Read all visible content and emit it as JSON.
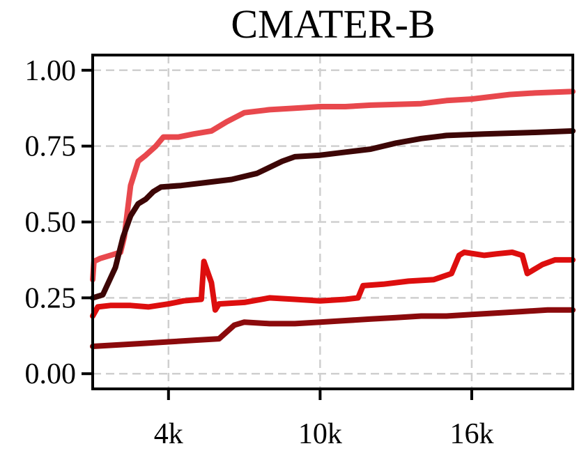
{
  "chart_data": {
    "type": "line",
    "title": "CMATER-B",
    "xlabel": "",
    "ylabel": "",
    "xlim": [
      1000,
      20000
    ],
    "ylim": [
      -0.05,
      1.05
    ],
    "grid": true,
    "x_ticks": [
      {
        "value": 4000,
        "label": "4k"
      },
      {
        "value": 10000,
        "label": "10k"
      },
      {
        "value": 16000,
        "label": "16k"
      }
    ],
    "y_ticks": [
      {
        "value": 0.0,
        "label": "0.00"
      },
      {
        "value": 0.25,
        "label": "0.25"
      },
      {
        "value": 0.5,
        "label": "0.50"
      },
      {
        "value": 0.75,
        "label": "0.75"
      },
      {
        "value": 1.0,
        "label": "1.00"
      }
    ],
    "series": [
      {
        "color": "#e8484d",
        "points": [
          [
            1000,
            0.31
          ],
          [
            1050,
            0.37
          ],
          [
            1300,
            0.38
          ],
          [
            1700,
            0.39
          ],
          [
            2100,
            0.4
          ],
          [
            2250,
            0.45
          ],
          [
            2500,
            0.62
          ],
          [
            2800,
            0.7
          ],
          [
            3100,
            0.72
          ],
          [
            3500,
            0.75
          ],
          [
            3800,
            0.78
          ],
          [
            4400,
            0.78
          ],
          [
            5000,
            0.79
          ],
          [
            5700,
            0.8
          ],
          [
            6300,
            0.83
          ],
          [
            7000,
            0.86
          ],
          [
            8000,
            0.87
          ],
          [
            9000,
            0.875
          ],
          [
            10000,
            0.88
          ],
          [
            11000,
            0.88
          ],
          [
            12000,
            0.885
          ],
          [
            14000,
            0.89
          ],
          [
            15000,
            0.9
          ],
          [
            16000,
            0.905
          ],
          [
            17500,
            0.92
          ],
          [
            18500,
            0.925
          ],
          [
            20000,
            0.93
          ]
        ]
      },
      {
        "color": "#3d0606",
        "points": [
          [
            1000,
            0.25
          ],
          [
            1400,
            0.26
          ],
          [
            1900,
            0.35
          ],
          [
            2200,
            0.45
          ],
          [
            2500,
            0.52
          ],
          [
            2800,
            0.56
          ],
          [
            3100,
            0.575
          ],
          [
            3400,
            0.6
          ],
          [
            3700,
            0.615
          ],
          [
            4500,
            0.62
          ],
          [
            5500,
            0.63
          ],
          [
            6500,
            0.64
          ],
          [
            7500,
            0.66
          ],
          [
            8000,
            0.68
          ],
          [
            8500,
            0.7
          ],
          [
            9000,
            0.715
          ],
          [
            10000,
            0.72
          ],
          [
            11000,
            0.73
          ],
          [
            12000,
            0.74
          ],
          [
            13000,
            0.76
          ],
          [
            14000,
            0.775
          ],
          [
            15000,
            0.785
          ],
          [
            16500,
            0.79
          ],
          [
            18500,
            0.795
          ],
          [
            20000,
            0.8
          ]
        ]
      },
      {
        "color": "#dd0e0e",
        "points": [
          [
            1000,
            0.19
          ],
          [
            1200,
            0.22
          ],
          [
            1700,
            0.225
          ],
          [
            2500,
            0.225
          ],
          [
            3200,
            0.22
          ],
          [
            4000,
            0.23
          ],
          [
            4600,
            0.24
          ],
          [
            5300,
            0.245
          ],
          [
            5400,
            0.37
          ],
          [
            5700,
            0.3
          ],
          [
            5850,
            0.21
          ],
          [
            6000,
            0.23
          ],
          [
            7000,
            0.235
          ],
          [
            8000,
            0.25
          ],
          [
            9000,
            0.245
          ],
          [
            10000,
            0.24
          ],
          [
            11000,
            0.245
          ],
          [
            11500,
            0.25
          ],
          [
            11700,
            0.29
          ],
          [
            12500,
            0.295
          ],
          [
            13500,
            0.305
          ],
          [
            14500,
            0.31
          ],
          [
            15200,
            0.33
          ],
          [
            15500,
            0.39
          ],
          [
            15700,
            0.4
          ],
          [
            16500,
            0.39
          ],
          [
            17000,
            0.395
          ],
          [
            17600,
            0.4
          ],
          [
            18000,
            0.39
          ],
          [
            18200,
            0.33
          ],
          [
            18800,
            0.36
          ],
          [
            19300,
            0.375
          ],
          [
            20000,
            0.375
          ]
        ]
      },
      {
        "color": "#8b0a0c",
        "points": [
          [
            1000,
            0.09
          ],
          [
            2000,
            0.095
          ],
          [
            3000,
            0.1
          ],
          [
            4000,
            0.105
          ],
          [
            5000,
            0.11
          ],
          [
            6000,
            0.115
          ],
          [
            6600,
            0.16
          ],
          [
            7000,
            0.17
          ],
          [
            8000,
            0.165
          ],
          [
            9000,
            0.165
          ],
          [
            10000,
            0.17
          ],
          [
            11000,
            0.175
          ],
          [
            12000,
            0.18
          ],
          [
            13000,
            0.185
          ],
          [
            14000,
            0.19
          ],
          [
            15000,
            0.19
          ],
          [
            16000,
            0.195
          ],
          [
            17000,
            0.2
          ],
          [
            18000,
            0.205
          ],
          [
            19000,
            0.21
          ],
          [
            20000,
            0.21
          ]
        ]
      }
    ]
  }
}
